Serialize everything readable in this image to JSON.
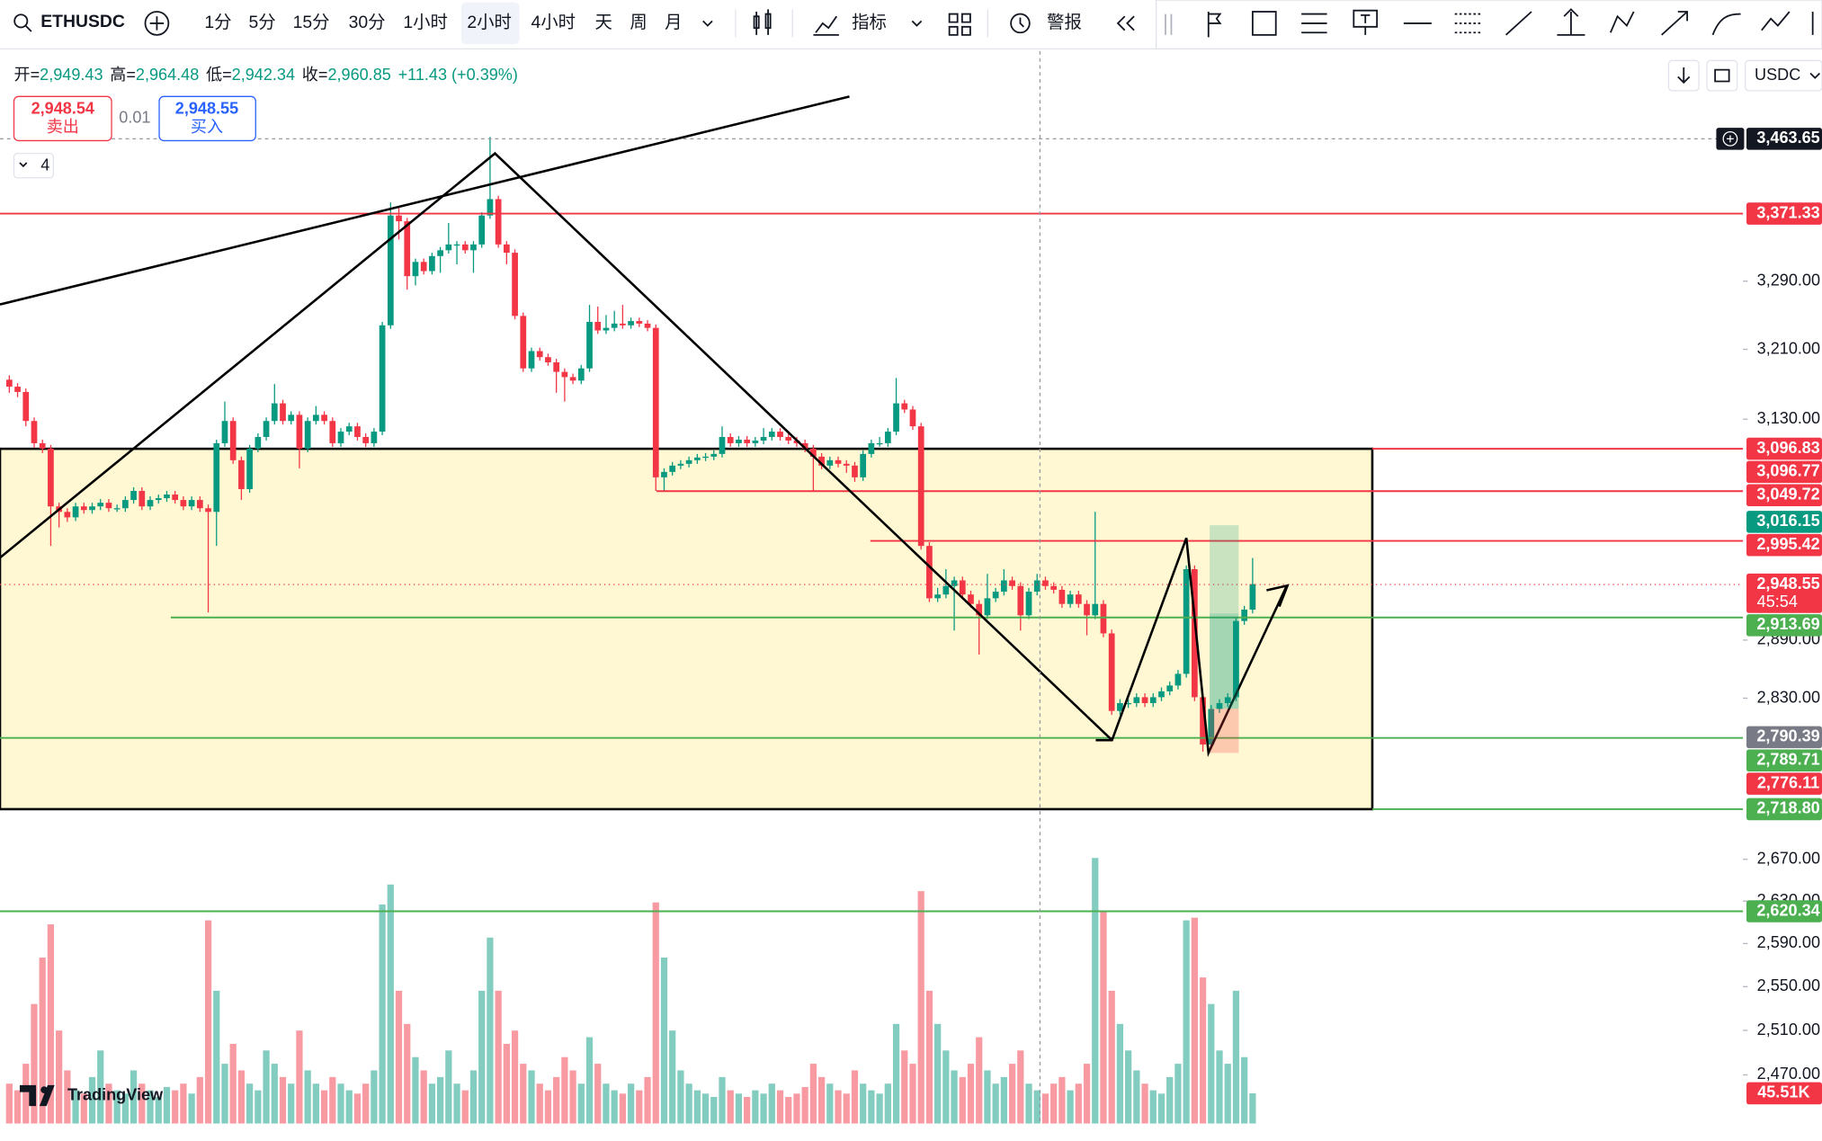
{
  "toolbar": {
    "symbol": "ETHUSDC",
    "intervals": [
      "1分",
      "5分",
      "15分",
      "30分",
      "1小时",
      "2小时",
      "4小时",
      "天",
      "周",
      "月"
    ],
    "indicators": "指标",
    "alert": "警报",
    "currency": "USDC"
  },
  "header": {
    "ohlc": [
      {
        "label": "开=",
        "value": "2,949.43"
      },
      {
        "label": "高=",
        "value": "2,964.48"
      },
      {
        "label": "低=",
        "value": "2,942.34"
      },
      {
        "label": "收=",
        "value": "2,960.85"
      }
    ],
    "change": "+11.43 (+0.39%)"
  },
  "trade": {
    "sell_price": "2,948.54",
    "sell_label": "卖出",
    "quantity": "0.01",
    "buy_price": "2,948.55",
    "buy_label": "买入"
  },
  "legend_count": "4",
  "branding": "TradingView",
  "chart_data": {
    "type": "candlestick",
    "log_scale": true,
    "ylim": [
      2427,
      3575
    ],
    "yticks": [
      {
        "value": 3290,
        "label": "3,290.00"
      },
      {
        "value": 3210,
        "label": "3,210.00"
      },
      {
        "value": 3130,
        "label": "3,130.00"
      },
      {
        "value": 2890,
        "label": "2,890.00"
      },
      {
        "value": 2830,
        "label": "2,830.00"
      },
      {
        "value": 2670,
        "label": "2,670.00"
      },
      {
        "value": 2630,
        "label": "2,630.00"
      },
      {
        "value": 2590,
        "label": "2,590.00"
      },
      {
        "value": 2550,
        "label": "2,550.00"
      },
      {
        "value": 2510,
        "label": "2,510.00"
      },
      {
        "value": 2470,
        "label": "2,470.00"
      }
    ],
    "up_color": "#089981",
    "down_color": "#f23645",
    "candles": [
      [
        3175,
        3180,
        3160,
        3167
      ],
      [
        3167,
        3171,
        3155,
        3161
      ],
      [
        3161,
        3165,
        3122,
        3128
      ],
      [
        3128,
        3132,
        3098,
        3103
      ],
      [
        3103,
        3107,
        3092,
        3097
      ],
      [
        3097,
        3101,
        2990,
        3033
      ],
      [
        3033,
        3037,
        3010,
        3027
      ],
      [
        3027,
        3031,
        3016,
        3021
      ],
      [
        3021,
        3037,
        3017,
        3033
      ],
      [
        3033,
        3037,
        3025,
        3029
      ],
      [
        3029,
        3037,
        3025,
        3033
      ],
      [
        3033,
        3041,
        3029,
        3037
      ],
      [
        3037,
        3041,
        3027,
        3031
      ],
      [
        3031,
        3035,
        3027,
        3031
      ],
      [
        3031,
        3044,
        3027,
        3040
      ],
      [
        3040,
        3054,
        3036,
        3050
      ],
      [
        3050,
        3054,
        3029,
        3033
      ],
      [
        3033,
        3044,
        3029,
        3040
      ],
      [
        3040,
        3046,
        3036,
        3042
      ],
      [
        3042,
        3050,
        3038,
        3046
      ],
      [
        3046,
        3050,
        3036,
        3040
      ],
      [
        3040,
        3044,
        3029,
        3033
      ],
      [
        3033,
        3044,
        3029,
        3040
      ],
      [
        3040,
        3044,
        3027,
        3031
      ],
      [
        3031,
        3035,
        2919,
        3027
      ],
      [
        3027,
        3107,
        2990,
        3103
      ],
      [
        3103,
        3150,
        3099,
        3128
      ],
      [
        3128,
        3132,
        3080,
        3084
      ],
      [
        3084,
        3088,
        3040,
        3052
      ],
      [
        3052,
        3101,
        3048,
        3097
      ],
      [
        3097,
        3114,
        3093,
        3110
      ],
      [
        3110,
        3132,
        3106,
        3128
      ],
      [
        3128,
        3170,
        3124,
        3148
      ],
      [
        3148,
        3152,
        3124,
        3128
      ],
      [
        3128,
        3139,
        3124,
        3135
      ],
      [
        3135,
        3139,
        3075,
        3097
      ],
      [
        3097,
        3132,
        3093,
        3128
      ],
      [
        3128,
        3145,
        3124,
        3135
      ],
      [
        3135,
        3139,
        3124,
        3128
      ],
      [
        3128,
        3132,
        3099,
        3103
      ],
      [
        3103,
        3120,
        3099,
        3116
      ],
      [
        3116,
        3126,
        3112,
        3122
      ],
      [
        3122,
        3126,
        3106,
        3110
      ],
      [
        3110,
        3114,
        3099,
        3103
      ],
      [
        3103,
        3120,
        3099,
        3116
      ],
      [
        3116,
        3242,
        3112,
        3238
      ],
      [
        3238,
        3385,
        3234,
        3369
      ],
      [
        3369,
        3380,
        3340,
        3362
      ],
      [
        3362,
        3366,
        3280,
        3296
      ],
      [
        3296,
        3317,
        3285,
        3313
      ],
      [
        3313,
        3317,
        3298,
        3302
      ],
      [
        3302,
        3324,
        3298,
        3320
      ],
      [
        3320,
        3331,
        3300,
        3327
      ],
      [
        3327,
        3360,
        3323,
        3334
      ],
      [
        3334,
        3338,
        3310,
        3334
      ],
      [
        3334,
        3338,
        3323,
        3327
      ],
      [
        3327,
        3338,
        3300,
        3334
      ],
      [
        3334,
        3373,
        3330,
        3369
      ],
      [
        3369,
        3466,
        3365,
        3389
      ],
      [
        3389,
        3393,
        3330,
        3334
      ],
      [
        3334,
        3338,
        3310,
        3324
      ],
      [
        3324,
        3328,
        3245,
        3249
      ],
      [
        3249,
        3253,
        3184,
        3188
      ],
      [
        3188,
        3212,
        3184,
        3208
      ],
      [
        3208,
        3212,
        3197,
        3201
      ],
      [
        3201,
        3205,
        3191,
        3195
      ],
      [
        3195,
        3199,
        3160,
        3184
      ],
      [
        3184,
        3188,
        3150,
        3178
      ],
      [
        3178,
        3182,
        3170,
        3174
      ],
      [
        3174,
        3192,
        3170,
        3188
      ],
      [
        3188,
        3262,
        3184,
        3242
      ],
      [
        3242,
        3260,
        3228,
        3232
      ],
      [
        3232,
        3250,
        3228,
        3235
      ],
      [
        3235,
        3255,
        3231,
        3240
      ],
      [
        3240,
        3262,
        3234,
        3238
      ],
      [
        3238,
        3247,
        3234,
        3243
      ],
      [
        3243,
        3247,
        3236,
        3240
      ],
      [
        3240,
        3244,
        3231,
        3235
      ],
      [
        3235,
        3239,
        3050,
        3065
      ],
      [
        3065,
        3075,
        3050,
        3071
      ],
      [
        3071,
        3082,
        3067,
        3078
      ],
      [
        3078,
        3084,
        3074,
        3080
      ],
      [
        3080,
        3088,
        3076,
        3084
      ],
      [
        3084,
        3091,
        3080,
        3087
      ],
      [
        3087,
        3092,
        3083,
        3088
      ],
      [
        3088,
        3095,
        3084,
        3091
      ],
      [
        3091,
        3122,
        3087,
        3110
      ],
      [
        3110,
        3114,
        3099,
        3103
      ],
      [
        3103,
        3111,
        3099,
        3107
      ],
      [
        3107,
        3111,
        3099,
        3103
      ],
      [
        3103,
        3110,
        3099,
        3106
      ],
      [
        3106,
        3120,
        3102,
        3110
      ],
      [
        3110,
        3120,
        3106,
        3116
      ],
      [
        3116,
        3120,
        3106,
        3110
      ],
      [
        3110,
        3114,
        3102,
        3106
      ],
      [
        3106,
        3110,
        3099,
        3103
      ],
      [
        3103,
        3107,
        3093,
        3097
      ],
      [
        3097,
        3101,
        3050,
        3088
      ],
      [
        3088,
        3092,
        3074,
        3078
      ],
      [
        3078,
        3088,
        3074,
        3084
      ],
      [
        3084,
        3088,
        3076,
        3080
      ],
      [
        3080,
        3084,
        3070,
        3078
      ],
      [
        3078,
        3082,
        3060,
        3065
      ],
      [
        3065,
        3095,
        3061,
        3091
      ],
      [
        3091,
        3107,
        3087,
        3103
      ],
      [
        3103,
        3110,
        3099,
        3103
      ],
      [
        3103,
        3120,
        3099,
        3116
      ],
      [
        3116,
        3177,
        3112,
        3148
      ],
      [
        3148,
        3152,
        3137,
        3141
      ],
      [
        3141,
        3145,
        3118,
        3122
      ],
      [
        3122,
        3126,
        2986,
        2990
      ],
      [
        2990,
        2994,
        2930,
        2934
      ],
      [
        2934,
        2945,
        2930,
        2938
      ],
      [
        2938,
        2965,
        2934,
        2947
      ],
      [
        2947,
        2957,
        2900,
        2953
      ],
      [
        2953,
        2957,
        2934,
        2938
      ],
      [
        2938,
        2942,
        2924,
        2928
      ],
      [
        2928,
        2932,
        2875,
        2916
      ],
      [
        2916,
        2960,
        2912,
        2934
      ],
      [
        2934,
        2945,
        2930,
        2941
      ],
      [
        2941,
        2965,
        2937,
        2953
      ],
      [
        2953,
        2957,
        2943,
        2947
      ],
      [
        2947,
        2951,
        2900,
        2916
      ],
      [
        2916,
        2945,
        2912,
        2941
      ],
      [
        2941,
        2960,
        2937,
        2953
      ],
      [
        2953,
        2957,
        2943,
        2947
      ],
      [
        2947,
        2951,
        2939,
        2943
      ],
      [
        2943,
        2947,
        2924,
        2928
      ],
      [
        2928,
        2942,
        2924,
        2938
      ],
      [
        2938,
        2942,
        2924,
        2928
      ],
      [
        2928,
        2932,
        2895,
        2916
      ],
      [
        2916,
        3027,
        2912,
        2928
      ],
      [
        2928,
        2932,
        2893,
        2897
      ],
      [
        2897,
        2901,
        2813,
        2817
      ],
      [
        2817,
        2829,
        2813,
        2825
      ],
      [
        2825,
        2829,
        2820,
        2825
      ],
      [
        2825,
        2835,
        2821,
        2831
      ],
      [
        2831,
        2835,
        2821,
        2825
      ],
      [
        2825,
        2835,
        2821,
        2831
      ],
      [
        2831,
        2841,
        2827,
        2837
      ],
      [
        2837,
        2847,
        2833,
        2843
      ],
      [
        2843,
        2859,
        2839,
        2855
      ],
      [
        2855,
        2969,
        2851,
        2965
      ],
      [
        2965,
        2969,
        2827,
        2831
      ],
      [
        2831,
        2835,
        2776,
        2783
      ],
      [
        2783,
        2823,
        2779,
        2819
      ],
      [
        2819,
        2829,
        2815,
        2825
      ],
      [
        2825,
        2835,
        2821,
        2831
      ],
      [
        2831,
        2914,
        2827,
        2910
      ],
      [
        2910,
        2926,
        2906,
        2922
      ],
      [
        2922,
        2977,
        2918,
        2949
      ]
    ],
    "volume": [
      60,
      50,
      90,
      180,
      250,
      300,
      140,
      80,
      50,
      45,
      70,
      110,
      60,
      50,
      45,
      80,
      60,
      50,
      40,
      55,
      50,
      60,
      45,
      70,
      306,
      200,
      90,
      120,
      80,
      60,
      50,
      110,
      90,
      70,
      60,
      140,
      80,
      60,
      50,
      70,
      60,
      50,
      45,
      60,
      80,
      330,
      360,
      200,
      150,
      100,
      80,
      60,
      70,
      110,
      60,
      50,
      80,
      200,
      280,
      200,
      120,
      140,
      90,
      80,
      60,
      50,
      70,
      100,
      80,
      60,
      130,
      90,
      60,
      50,
      45,
      60,
      50,
      70,
      333,
      250,
      140,
      80,
      60,
      50,
      45,
      40,
      70,
      50,
      45,
      40,
      50,
      45,
      60,
      50,
      40,
      45,
      55,
      90,
      70,
      60,
      50,
      45,
      80,
      60,
      50,
      45,
      60,
      150,
      110,
      90,
      350,
      200,
      150,
      110,
      80,
      70,
      90,
      130,
      80,
      60,
      70,
      90,
      110,
      60,
      50,
      45,
      60,
      70,
      50,
      60,
      90,
      400,
      320,
      200,
      150,
      110,
      80,
      60,
      50,
      45,
      70,
      90,
      306,
      310,
      220,
      180,
      110,
      90,
      200,
      100,
      45.51
    ],
    "volume_label": "45.51K",
    "price_tags": [
      {
        "value": 3463.65,
        "label": "3,463.65",
        "color": "#131722"
      },
      {
        "value": 3371.33,
        "label": "3,371.33",
        "color": "#f23645"
      },
      {
        "value": 3096.83,
        "label": "3,096.83",
        "color": "#f23645"
      },
      {
        "value": 3096.77,
        "label": "3,096.77",
        "color": "#f23645"
      },
      {
        "value": 3049.72,
        "label": "3,049.72",
        "color": "#f23645"
      },
      {
        "value": 3016.15,
        "label": "3,016.15",
        "color": "#089981"
      },
      {
        "value": 2995.42,
        "label": "2,995.42",
        "color": "#f23645"
      },
      {
        "value": 2948.55,
        "label": "2,948.55",
        "color": "#f23645",
        "countdown": "45:54"
      },
      {
        "value": 2913.69,
        "label": "2,913.69",
        "color": "#4caf50"
      },
      {
        "value": 2790.39,
        "label": "2,790.39",
        "color": "#787b86"
      },
      {
        "value": 2789.71,
        "label": "2,789.71",
        "color": "#4caf50"
      },
      {
        "value": 2776.11,
        "label": "2,776.11",
        "color": "#f23645"
      },
      {
        "value": 2718.8,
        "label": "2,718.80",
        "color": "#4caf50"
      },
      {
        "value": 2620.34,
        "label": "2,620.34",
        "color": "#4caf50"
      }
    ]
  }
}
